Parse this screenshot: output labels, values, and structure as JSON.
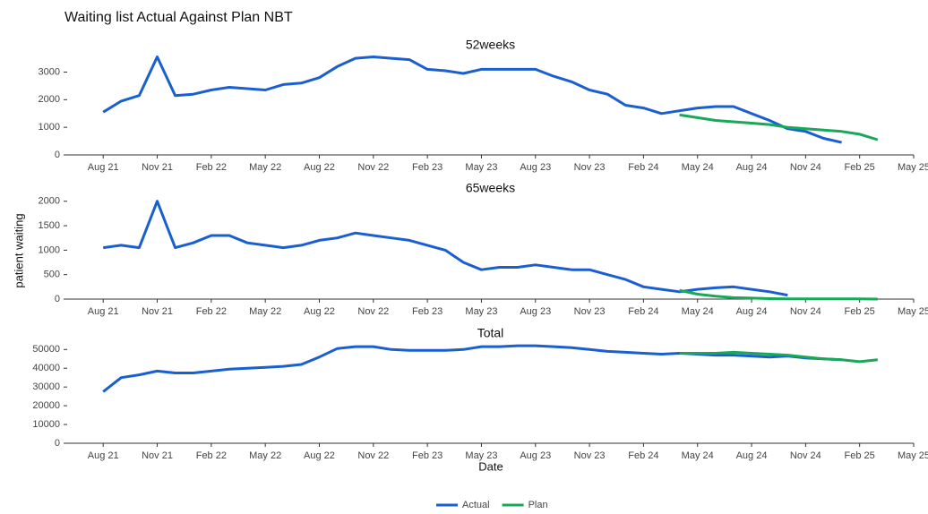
{
  "title": "Waiting list Actual Against Plan NBT",
  "y_label": "patient waiting",
  "x_label": "Date",
  "chart_data": [
    {
      "type": "line",
      "title": "52weeks",
      "x": [
        "2021-08",
        "2021-09",
        "2021-10",
        "2021-11",
        "2021-12",
        "2022-01",
        "2022-02",
        "2022-03",
        "2022-04",
        "2022-05",
        "2022-06",
        "2022-07",
        "2022-08",
        "2022-09",
        "2022-10",
        "2022-11",
        "2022-12",
        "2023-01",
        "2023-02",
        "2023-03",
        "2023-04",
        "2023-05",
        "2023-06",
        "2023-07",
        "2023-08",
        "2023-09",
        "2023-10",
        "2023-11",
        "2023-12",
        "2024-01",
        "2024-02",
        "2024-03",
        "2024-04",
        "2024-05",
        "2024-06",
        "2024-07",
        "2024-08",
        "2024-09",
        "2024-10",
        "2024-11",
        "2024-12",
        "2025-01",
        "2025-02",
        "2025-03"
      ],
      "series": [
        {
          "name": "Actual",
          "color": "#1a5fd0",
          "values": [
            1550,
            1950,
            2150,
            3550,
            2150,
            2200,
            2350,
            2450,
            2400,
            2350,
            2550,
            2600,
            2800,
            3200,
            3500,
            3550,
            3500,
            3450,
            3100,
            3050,
            2950,
            3100,
            3100,
            3100,
            3100,
            2850,
            2650,
            2350,
            2200,
            1800,
            1700,
            1500,
            1600,
            1700,
            1750,
            1750,
            1500,
            1250,
            950,
            850,
            600,
            450,
            null,
            null
          ]
        },
        {
          "name": "Plan",
          "color": "#17a858",
          "values": [
            null,
            null,
            null,
            null,
            null,
            null,
            null,
            null,
            null,
            null,
            null,
            null,
            null,
            null,
            null,
            null,
            null,
            null,
            null,
            null,
            null,
            null,
            null,
            null,
            null,
            null,
            null,
            null,
            null,
            null,
            null,
            null,
            1450,
            1350,
            1250,
            1200,
            1150,
            1100,
            1000,
            950,
            900,
            850,
            750,
            550
          ]
        }
      ],
      "xlim": [
        "2021-06",
        "2025-05"
      ],
      "xticks": [
        {
          "value": "2021-08",
          "label": "Aug 21"
        },
        {
          "value": "2021-11",
          "label": "Nov 21"
        },
        {
          "value": "2022-02",
          "label": "Feb 22"
        },
        {
          "value": "2022-05",
          "label": "May 22"
        },
        {
          "value": "2022-08",
          "label": "Aug 22"
        },
        {
          "value": "2022-11",
          "label": "Nov 22"
        },
        {
          "value": "2023-02",
          "label": "Feb 23"
        },
        {
          "value": "2023-05",
          "label": "May 23"
        },
        {
          "value": "2023-08",
          "label": "Aug 23"
        },
        {
          "value": "2023-11",
          "label": "Nov 23"
        },
        {
          "value": "2024-02",
          "label": "Feb 24"
        },
        {
          "value": "2024-05",
          "label": "May 24"
        },
        {
          "value": "2024-08",
          "label": "Aug 24"
        },
        {
          "value": "2024-11",
          "label": "Nov 24"
        },
        {
          "value": "2025-02",
          "label": "Feb 25"
        },
        {
          "value": "2025-05",
          "label": "May 25"
        }
      ],
      "ylim": [
        0,
        3600
      ],
      "yticks": [
        0,
        1000,
        2000,
        3000
      ]
    },
    {
      "type": "line",
      "title": "65weeks",
      "x": [
        "2021-08",
        "2021-09",
        "2021-10",
        "2021-11",
        "2021-12",
        "2022-01",
        "2022-02",
        "2022-03",
        "2022-04",
        "2022-05",
        "2022-06",
        "2022-07",
        "2022-08",
        "2022-09",
        "2022-10",
        "2022-11",
        "2022-12",
        "2023-01",
        "2023-02",
        "2023-03",
        "2023-04",
        "2023-05",
        "2023-06",
        "2023-07",
        "2023-08",
        "2023-09",
        "2023-10",
        "2023-11",
        "2023-12",
        "2024-01",
        "2024-02",
        "2024-03",
        "2024-04",
        "2024-05",
        "2024-06",
        "2024-07",
        "2024-08",
        "2024-09",
        "2024-10",
        "2024-11",
        "2024-12",
        "2025-01",
        "2025-02",
        "2025-03"
      ],
      "series": [
        {
          "name": "Actual",
          "color": "#1a5fd0",
          "values": [
            1050,
            1100,
            1050,
            2000,
            1050,
            1150,
            1300,
            1300,
            1150,
            1100,
            1050,
            1100,
            1200,
            1250,
            1350,
            1300,
            1250,
            1200,
            1100,
            1000,
            750,
            600,
            650,
            650,
            700,
            650,
            600,
            600,
            500,
            400,
            250,
            200,
            150,
            200,
            230,
            250,
            200,
            150,
            80,
            null,
            null,
            null,
            null,
            null
          ]
        },
        {
          "name": "Plan",
          "color": "#17a858",
          "values": [
            null,
            null,
            null,
            null,
            null,
            null,
            null,
            null,
            null,
            null,
            null,
            null,
            null,
            null,
            null,
            null,
            null,
            null,
            null,
            null,
            null,
            null,
            null,
            null,
            null,
            null,
            null,
            null,
            null,
            null,
            null,
            null,
            180,
            100,
            60,
            30,
            20,
            10,
            5,
            5,
            5,
            5,
            5,
            0
          ]
        }
      ],
      "xlim": [
        "2021-06",
        "2025-05"
      ],
      "xticks": [
        {
          "value": "2021-08",
          "label": "Aug 21"
        },
        {
          "value": "2021-11",
          "label": "Nov 21"
        },
        {
          "value": "2022-02",
          "label": "Feb 22"
        },
        {
          "value": "2022-05",
          "label": "May 22"
        },
        {
          "value": "2022-08",
          "label": "Aug 22"
        },
        {
          "value": "2022-11",
          "label": "Nov 22"
        },
        {
          "value": "2023-02",
          "label": "Feb 23"
        },
        {
          "value": "2023-05",
          "label": "May 23"
        },
        {
          "value": "2023-08",
          "label": "Aug 23"
        },
        {
          "value": "2023-11",
          "label": "Nov 23"
        },
        {
          "value": "2024-02",
          "label": "Feb 24"
        },
        {
          "value": "2024-05",
          "label": "May 24"
        },
        {
          "value": "2024-08",
          "label": "Aug 24"
        },
        {
          "value": "2024-11",
          "label": "Nov 24"
        },
        {
          "value": "2025-02",
          "label": "Feb 25"
        },
        {
          "value": "2025-05",
          "label": "May 25"
        }
      ],
      "ylim": [
        0,
        2050
      ],
      "yticks": [
        0,
        500,
        1000,
        1500,
        2000
      ]
    },
    {
      "type": "line",
      "title": "Total",
      "x": [
        "2021-08",
        "2021-09",
        "2021-10",
        "2021-11",
        "2021-12",
        "2022-01",
        "2022-02",
        "2022-03",
        "2022-04",
        "2022-05",
        "2022-06",
        "2022-07",
        "2022-08",
        "2022-09",
        "2022-10",
        "2022-11",
        "2022-12",
        "2023-01",
        "2023-02",
        "2023-03",
        "2023-04",
        "2023-05",
        "2023-06",
        "2023-07",
        "2023-08",
        "2023-09",
        "2023-10",
        "2023-11",
        "2023-12",
        "2024-01",
        "2024-02",
        "2024-03",
        "2024-04",
        "2024-05",
        "2024-06",
        "2024-07",
        "2024-08",
        "2024-09",
        "2024-10",
        "2024-11",
        "2024-12",
        "2025-01",
        "2025-02",
        "2025-03"
      ],
      "series": [
        {
          "name": "Actual",
          "color": "#1a5fd0",
          "values": [
            27500,
            35000,
            36500,
            38500,
            37500,
            37500,
            38500,
            39500,
            40000,
            40500,
            41000,
            42000,
            46000,
            50500,
            51500,
            51500,
            50000,
            49500,
            49500,
            49500,
            50000,
            51500,
            51500,
            52000,
            52000,
            51500,
            51000,
            50000,
            49000,
            48500,
            48000,
            47500,
            48000,
            47500,
            47000,
            47000,
            46500,
            46000,
            46500,
            45500,
            45000,
            44500,
            null,
            null
          ]
        },
        {
          "name": "Plan",
          "color": "#17a858",
          "values": [
            null,
            null,
            null,
            null,
            null,
            null,
            null,
            null,
            null,
            null,
            null,
            null,
            null,
            null,
            null,
            null,
            null,
            null,
            null,
            null,
            null,
            null,
            null,
            null,
            null,
            null,
            null,
            null,
            null,
            null,
            null,
            null,
            48000,
            48000,
            48000,
            48500,
            48000,
            47500,
            47000,
            46000,
            45000,
            44500,
            43500,
            44500
          ]
        }
      ],
      "xlim": [
        "2021-06",
        "2025-05"
      ],
      "xticks": [
        {
          "value": "2021-08",
          "label": "Aug 21"
        },
        {
          "value": "2021-11",
          "label": "Nov 21"
        },
        {
          "value": "2022-02",
          "label": "Feb 22"
        },
        {
          "value": "2022-05",
          "label": "May 22"
        },
        {
          "value": "2022-08",
          "label": "Aug 22"
        },
        {
          "value": "2022-11",
          "label": "Nov 22"
        },
        {
          "value": "2023-02",
          "label": "Feb 23"
        },
        {
          "value": "2023-05",
          "label": "May 23"
        },
        {
          "value": "2023-08",
          "label": "Aug 23"
        },
        {
          "value": "2023-11",
          "label": "Nov 23"
        },
        {
          "value": "2024-02",
          "label": "Feb 24"
        },
        {
          "value": "2024-05",
          "label": "May 24"
        },
        {
          "value": "2024-08",
          "label": "Aug 24"
        },
        {
          "value": "2024-11",
          "label": "Nov 24"
        },
        {
          "value": "2025-02",
          "label": "Feb 25"
        },
        {
          "value": "2025-05",
          "label": "May 25"
        }
      ],
      "ylim": [
        0,
        53000
      ],
      "yticks": [
        0,
        10000,
        20000,
        30000,
        40000,
        50000
      ]
    }
  ]
}
